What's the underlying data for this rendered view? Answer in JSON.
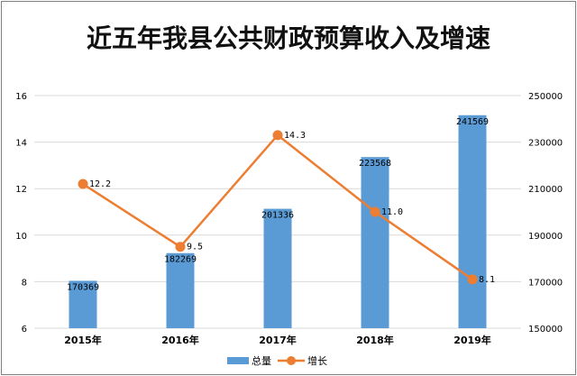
{
  "chart_data": {
    "type": "bar",
    "title": "近五年我县公共财政预算收入及增速",
    "categories": [
      "2015年",
      "2016年",
      "2017年",
      "2018年",
      "2019年"
    ],
    "series": [
      {
        "name": "总量",
        "type": "bar",
        "axis": "right",
        "values": [
          170369,
          182269,
          201336,
          223568,
          241569
        ]
      },
      {
        "name": "增长",
        "type": "line",
        "axis": "left",
        "values": [
          12.2,
          9.5,
          14.3,
          11.0,
          8.1
        ]
      }
    ],
    "line_labels": [
      "12.2",
      "9.5",
      "14.3",
      "11.0",
      "8.1"
    ],
    "bar_labels": [
      "170369",
      "182269",
      "201336",
      "223568",
      "241569"
    ],
    "y_left": {
      "min": 6,
      "max": 16,
      "ticks": [
        "6",
        "8",
        "10",
        "12",
        "14",
        "16"
      ]
    },
    "y_right": {
      "min": 150000,
      "max": 250000,
      "ticks": [
        "150000",
        "170000",
        "190000",
        "210000",
        "230000",
        "250000"
      ]
    },
    "grid": true,
    "legend_position": "bottom",
    "colors": {
      "bar": "#5b9bd5",
      "line": "#ed7d31",
      "grid": "#d9d9d9"
    }
  }
}
